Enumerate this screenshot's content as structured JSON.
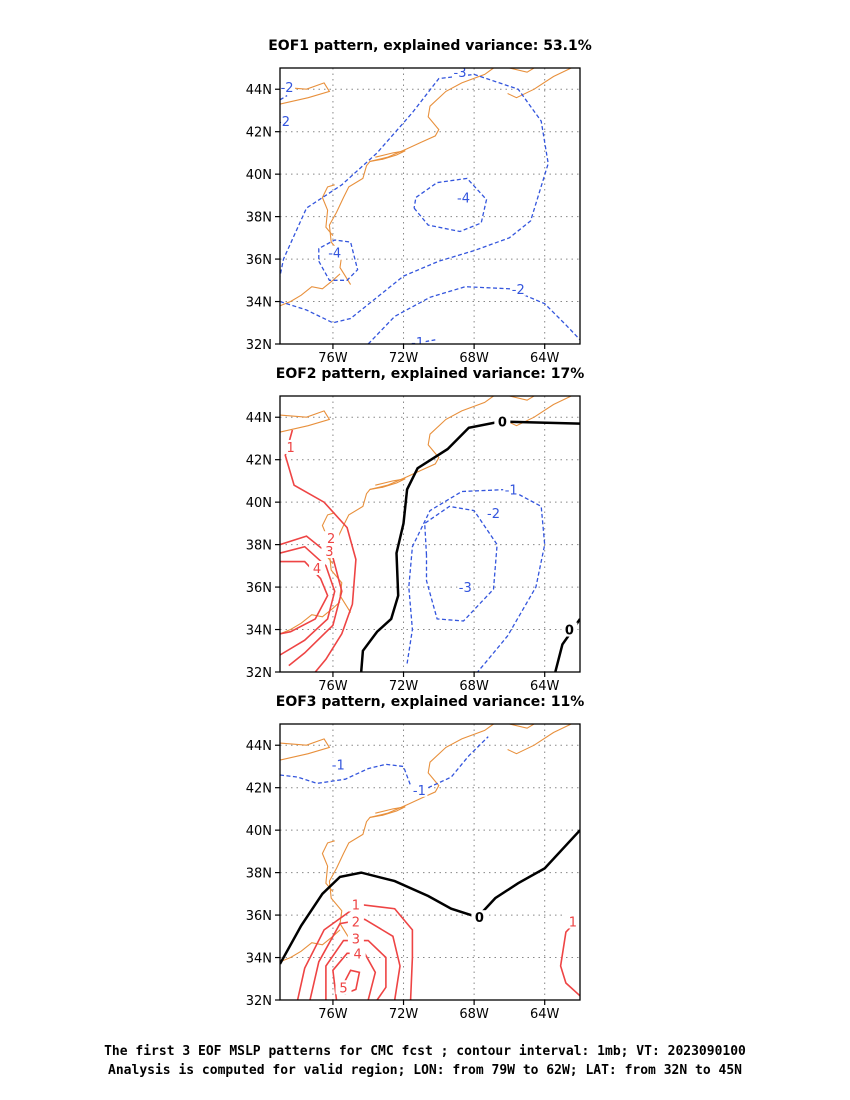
{
  "chart_data": [
    {
      "type": "contour",
      "title": "EOF1 pattern, explained variance: 53.1%",
      "x_ticks": [
        "76W",
        "72W",
        "68W",
        "64W"
      ],
      "y_ticks": [
        "32N",
        "34N",
        "36N",
        "38N",
        "40N",
        "42N",
        "44N"
      ],
      "lon_range": [
        -79,
        -62
      ],
      "lat_range": [
        32,
        45
      ],
      "contour_labels": [
        "-2",
        "-2",
        "-3",
        "-4",
        "-4",
        "-2",
        "-1"
      ]
    },
    {
      "type": "contour",
      "title": "EOF2 pattern, explained variance: 17%",
      "x_ticks": [
        "76W",
        "72W",
        "68W",
        "64W"
      ],
      "y_ticks": [
        "32N",
        "34N",
        "36N",
        "38N",
        "40N",
        "42N",
        "44N"
      ],
      "lon_range": [
        -79,
        -62
      ],
      "lat_range": [
        32,
        45
      ],
      "contour_labels": [
        "1",
        "2",
        "3",
        "4",
        "0",
        "0",
        "-1",
        "-2",
        "-3"
      ]
    },
    {
      "type": "contour",
      "title": "EOF3 pattern, explained variance: 11%",
      "x_ticks": [
        "76W",
        "72W",
        "68W",
        "64W"
      ],
      "y_ticks": [
        "32N",
        "34N",
        "36N",
        "38N",
        "40N",
        "42N",
        "44N"
      ],
      "lon_range": [
        -79,
        -62
      ],
      "lat_range": [
        32,
        45
      ],
      "contour_labels": [
        "-1",
        "-1",
        "0",
        "1",
        "2",
        "3",
        "4",
        "5",
        "1"
      ]
    }
  ],
  "caption": {
    "line1": "The first 3 EOF MSLP patterns for CMC fcst ; contour interval: 1mb; VT: 2023090100",
    "line2": "Analysis is computed for valid region; LON: from 79W to 62W; LAT: from 32N to 45N"
  },
  "colors": {
    "negative": "#3355dd",
    "positive": "#ee4444",
    "zero": "#000000",
    "coastline": "#e8903c",
    "grid": "#888888"
  }
}
